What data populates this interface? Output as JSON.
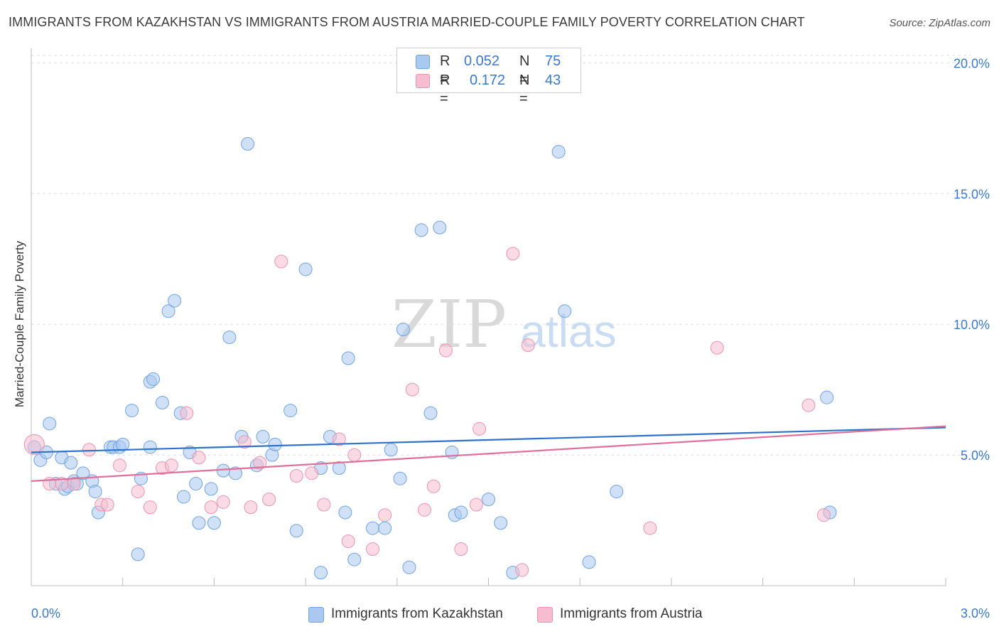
{
  "title": "IMMIGRANTS FROM KAZAKHSTAN VS IMMIGRANTS FROM AUSTRIA MARRIED-COUPLE FAMILY POVERTY CORRELATION CHART",
  "source": "Source: ZipAtlas.com",
  "watermark": {
    "zip": "ZIP",
    "atlas": "atlas"
  },
  "legend": {
    "r_label": "R =",
    "n_label": "N =",
    "rows": [
      {
        "r": "0.052",
        "n": "75",
        "color": "#a9c9f0"
      },
      {
        "r": "0.172",
        "n": "43",
        "color": "#f6bdd0"
      }
    ]
  },
  "bottom_legend": {
    "items": [
      {
        "label": "Immigrants from Kazakhstan",
        "color": "#a9c9f0"
      },
      {
        "label": "Immigrants from Austria",
        "color": "#f6bdd0"
      }
    ]
  },
  "chart_data": {
    "type": "scatter",
    "title": "IMMIGRANTS FROM KAZAKHSTAN VS IMMIGRANTS FROM AUSTRIA MARRIED-COUPLE FAMILY POVERTY CORRELATION CHART",
    "xlabel": "",
    "ylabel": "Married-Couple Family Poverty",
    "xlim": [
      0,
      3.0
    ],
    "ylim": [
      0,
      20.5
    ],
    "x_tick_labels": [
      "0.0%",
      "3.0%"
    ],
    "y_ticks": [
      5,
      10,
      15,
      20
    ],
    "y_tick_labels": [
      "5.0%",
      "10.0%",
      "15.0%",
      "20.0%"
    ],
    "grid": "horizontal dashed",
    "legend_position": "top-center",
    "series": [
      {
        "name": "Immigrants from Kazakhstan",
        "color": "#6fa3e0",
        "fill": "#a9c9f0",
        "trend": {
          "x": [
            0,
            3.0
          ],
          "y": [
            5.1,
            6.05
          ],
          "color": "#2e72cc"
        },
        "points": [
          [
            0.01,
            5.3
          ],
          [
            0.03,
            4.8
          ],
          [
            0.05,
            5.1
          ],
          [
            0.06,
            6.2
          ],
          [
            0.08,
            3.9
          ],
          [
            0.1,
            4.9
          ],
          [
            0.11,
            3.7
          ],
          [
            0.12,
            3.8
          ],
          [
            0.13,
            4.7
          ],
          [
            0.14,
            4.0
          ],
          [
            0.15,
            3.9
          ],
          [
            0.17,
            4.3
          ],
          [
            0.2,
            4.0
          ],
          [
            0.21,
            3.6
          ],
          [
            0.22,
            2.8
          ],
          [
            0.26,
            5.3
          ],
          [
            0.27,
            5.3
          ],
          [
            0.29,
            5.3
          ],
          [
            0.3,
            5.4
          ],
          [
            0.33,
            6.7
          ],
          [
            0.35,
            1.2
          ],
          [
            0.36,
            4.1
          ],
          [
            0.39,
            5.3
          ],
          [
            0.39,
            7.8
          ],
          [
            0.4,
            7.9
          ],
          [
            0.43,
            7.0
          ],
          [
            0.45,
            10.5
          ],
          [
            0.47,
            10.9
          ],
          [
            0.49,
            6.6
          ],
          [
            0.5,
            3.4
          ],
          [
            0.52,
            5.1
          ],
          [
            0.54,
            3.9
          ],
          [
            0.55,
            2.4
          ],
          [
            0.59,
            3.7
          ],
          [
            0.6,
            2.4
          ],
          [
            0.63,
            4.4
          ],
          [
            0.65,
            9.5
          ],
          [
            0.67,
            4.3
          ],
          [
            0.69,
            5.7
          ],
          [
            0.71,
            16.9
          ],
          [
            0.74,
            4.6
          ],
          [
            0.76,
            5.7
          ],
          [
            0.79,
            5.0
          ],
          [
            0.8,
            5.4
          ],
          [
            0.85,
            6.7
          ],
          [
            0.87,
            2.1
          ],
          [
            0.9,
            12.1
          ],
          [
            0.95,
            4.5
          ],
          [
            0.95,
            0.5
          ],
          [
            0.98,
            5.7
          ],
          [
            1.01,
            4.5
          ],
          [
            1.03,
            2.8
          ],
          [
            1.04,
            8.7
          ],
          [
            1.06,
            1.0
          ],
          [
            1.12,
            2.2
          ],
          [
            1.16,
            2.2
          ],
          [
            1.18,
            5.2
          ],
          [
            1.21,
            4.1
          ],
          [
            1.22,
            9.8
          ],
          [
            1.24,
            0.7
          ],
          [
            1.28,
            13.6
          ],
          [
            1.31,
            6.6
          ],
          [
            1.34,
            13.7
          ],
          [
            1.38,
            5.1
          ],
          [
            1.39,
            2.7
          ],
          [
            1.41,
            2.8
          ],
          [
            1.5,
            3.3
          ],
          [
            1.54,
            2.4
          ],
          [
            1.58,
            0.5
          ],
          [
            1.73,
            16.6
          ],
          [
            1.75,
            10.5
          ],
          [
            1.83,
            0.9
          ],
          [
            1.92,
            3.6
          ],
          [
            2.61,
            7.2
          ],
          [
            2.62,
            2.8
          ]
        ]
      },
      {
        "name": "Immigrants from Austria",
        "color": "#ea94b2",
        "fill": "#f6bdd0",
        "trend": {
          "x": [
            0,
            3.0
          ],
          "y": [
            4.0,
            6.1
          ],
          "color": "#e06f9a"
        },
        "points": [
          [
            0.01,
            5.4
          ],
          [
            0.06,
            3.9
          ],
          [
            0.1,
            3.9
          ],
          [
            0.14,
            3.9
          ],
          [
            0.19,
            5.2
          ],
          [
            0.23,
            3.1
          ],
          [
            0.25,
            3.1
          ],
          [
            0.29,
            4.6
          ],
          [
            0.35,
            3.6
          ],
          [
            0.39,
            3.0
          ],
          [
            0.43,
            4.5
          ],
          [
            0.46,
            4.6
          ],
          [
            0.51,
            6.6
          ],
          [
            0.55,
            4.9
          ],
          [
            0.59,
            3.0
          ],
          [
            0.63,
            3.2
          ],
          [
            0.7,
            5.5
          ],
          [
            0.72,
            3.0
          ],
          [
            0.75,
            4.7
          ],
          [
            0.78,
            3.3
          ],
          [
            0.82,
            12.4
          ],
          [
            0.87,
            4.2
          ],
          [
            0.92,
            4.3
          ],
          [
            0.96,
            3.1
          ],
          [
            1.01,
            5.6
          ],
          [
            1.04,
            1.7
          ],
          [
            1.06,
            5.0
          ],
          [
            1.12,
            1.4
          ],
          [
            1.16,
            2.7
          ],
          [
            1.25,
            7.5
          ],
          [
            1.29,
            2.9
          ],
          [
            1.32,
            3.8
          ],
          [
            1.36,
            9.0
          ],
          [
            1.41,
            1.4
          ],
          [
            1.46,
            3.1
          ],
          [
            1.47,
            6.0
          ],
          [
            1.58,
            12.7
          ],
          [
            1.61,
            0.6
          ],
          [
            1.63,
            9.2
          ],
          [
            2.03,
            2.2
          ],
          [
            2.25,
            9.1
          ],
          [
            2.55,
            6.9
          ],
          [
            2.6,
            2.7
          ]
        ]
      }
    ]
  }
}
